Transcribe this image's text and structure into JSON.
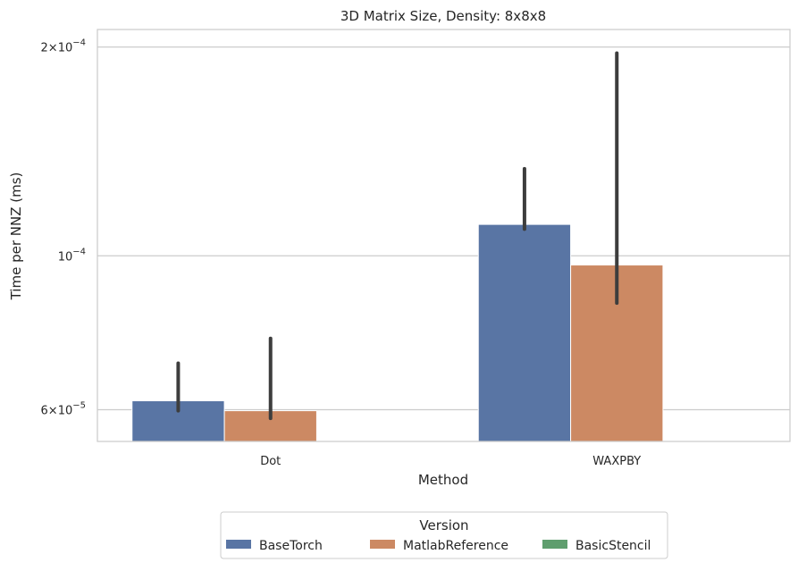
{
  "chart_data": {
    "type": "bar",
    "title": "3D Matrix Size, Density: 8x8x8",
    "xlabel": "Method",
    "ylabel": "Time per NNZ (ms)",
    "yscale": "log",
    "ylim": [
      5.4e-05,
      0.000212
    ],
    "yticks": [
      {
        "value": 6e-05,
        "mantissa": "6",
        "exponent": "−5"
      },
      {
        "value": 0.0001,
        "mantissa": "",
        "exponent": "−4"
      },
      {
        "value": 0.0002,
        "mantissa": "2",
        "exponent": "−4"
      }
    ],
    "grid": "horizontal",
    "categories": [
      "Dot",
      "WAXPBY"
    ],
    "series": [
      {
        "name": "BaseTorch",
        "color": "#5975a4",
        "values": [
          6.18e-05,
          0.000111
        ],
        "ci_low": [
          5.98e-05,
          0.0001093
        ],
        "ci_high": [
          7e-05,
          0.0001335
        ]
      },
      {
        "name": "MatlabReference",
        "color": "#cc8963",
        "values": [
          5.98e-05,
          9.7e-05
        ],
        "ci_low": [
          5.83e-05,
          8.55e-05
        ],
        "ci_high": [
          7.6e-05,
          0.000196
        ]
      },
      {
        "name": "BasicStencil",
        "color": "#5f9e6e",
        "values": [
          null,
          null
        ],
        "ci_low": [
          null,
          null
        ],
        "ci_high": [
          null,
          null
        ]
      }
    ],
    "legend": {
      "title": "Version",
      "position": "bottom-center"
    }
  }
}
